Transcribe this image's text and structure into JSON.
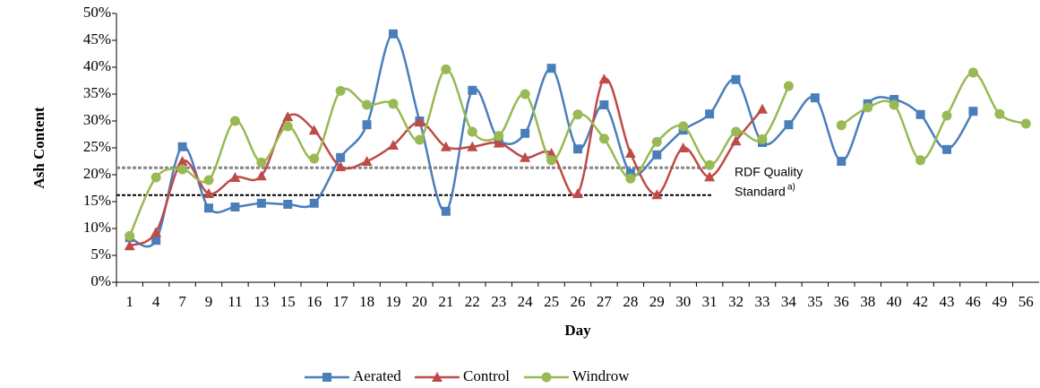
{
  "chart_data": {
    "type": "line",
    "x_label": "Day",
    "y_label": "Ash Content",
    "categories": [
      "1",
      "4",
      "7",
      "9",
      "11",
      "13",
      "15",
      "16",
      "17",
      "18",
      "19",
      "20",
      "21",
      "22",
      "23",
      "24",
      "25",
      "26",
      "27",
      "28",
      "29",
      "30",
      "31",
      "32",
      "33",
      "34",
      "35",
      "36",
      "38",
      "40",
      "42",
      "43",
      "46",
      "49",
      "56"
    ],
    "ylim": [
      0,
      50
    ],
    "yticks": [
      {
        "value": 0,
        "label": "0%"
      },
      {
        "value": 5,
        "label": "5%"
      },
      {
        "value": 10,
        "label": "10%"
      },
      {
        "value": 15,
        "label": "15%"
      },
      {
        "value": 20,
        "label": "20%"
      },
      {
        "value": 25,
        "label": "25%"
      },
      {
        "value": 30,
        "label": "30%"
      },
      {
        "value": 35,
        "label": "35%"
      },
      {
        "value": 40,
        "label": "40%"
      },
      {
        "value": 45,
        "label": "45%"
      },
      {
        "value": 50,
        "label": "50%"
      }
    ],
    "series": [
      {
        "name": "Aerated",
        "color": "#4a7ebb",
        "marker": "square",
        "values": [
          8.3,
          7.8,
          25.2,
          13.8,
          14,
          14.7,
          14.5,
          14.7,
          23.2,
          29.3,
          46.2,
          30,
          13.2,
          35.7,
          26.5,
          27.7,
          39.8,
          24.8,
          33,
          20.3,
          23.7,
          28.3,
          31.3,
          37.7,
          26,
          29.3,
          34.3,
          22.5,
          33.2,
          34,
          31.2,
          24.7,
          31.8,
          null,
          null
        ]
      },
      {
        "name": "Control",
        "color": "#be4b48",
        "marker": "triangle",
        "values": [
          6.8,
          9.3,
          22.5,
          16.5,
          19.5,
          19.8,
          30.8,
          28.3,
          21.5,
          22.5,
          25.5,
          29.8,
          25.2,
          25.2,
          25.9,
          23.2,
          24,
          16.5,
          37.8,
          24,
          16.3,
          25,
          19.6,
          26.3,
          32.2,
          null,
          null,
          null,
          null,
          null,
          null,
          null,
          null,
          null,
          null
        ]
      },
      {
        "name": "Windrow",
        "color": "#98b954",
        "marker": "circle",
        "values": [
          8.6,
          19.5,
          21,
          19,
          30,
          22.3,
          29,
          23,
          35.6,
          33,
          33.2,
          26.5,
          39.6,
          28,
          27.2,
          35,
          22.7,
          31.2,
          26.7,
          19.3,
          26.1,
          29,
          21.8,
          28,
          26.6,
          36.5,
          null,
          29.2,
          32.5,
          33,
          22.7,
          31,
          39,
          31.3,
          29.5
        ]
      }
    ],
    "reference_lines": [
      21.3,
      16.2
    ],
    "annotation": "RDF Quality",
    "annotation_2": "Standard",
    "annotation_note": "a)"
  }
}
